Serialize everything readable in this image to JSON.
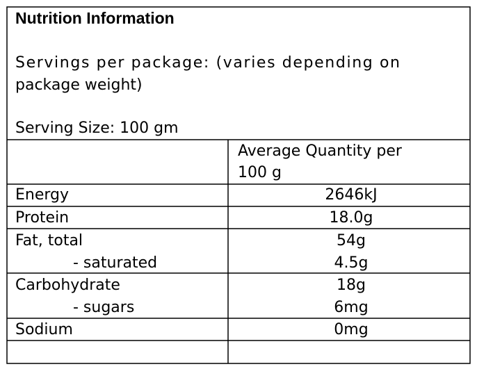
{
  "header": {
    "title": "Nutrition Information",
    "servings_line_1": "Servings per package: (varies depending on",
    "servings_line_2": "package weight)",
    "serving_size": "Serving Size: 100 gm"
  },
  "table": {
    "column_header_line_1": "Average Quantity per",
    "column_header_line_2": "100 g",
    "rows": [
      [
        "Energy",
        "2646kJ"
      ],
      [
        "Protein",
        "18.0g"
      ],
      [
        "Fat, total",
        "54g"
      ],
      [
        "- saturated",
        "4.5g"
      ],
      [
        "Carbohydrate",
        "18g"
      ],
      [
        "- sugars",
        "6mg"
      ],
      [
        "Sodium",
        "0mg"
      ]
    ]
  }
}
